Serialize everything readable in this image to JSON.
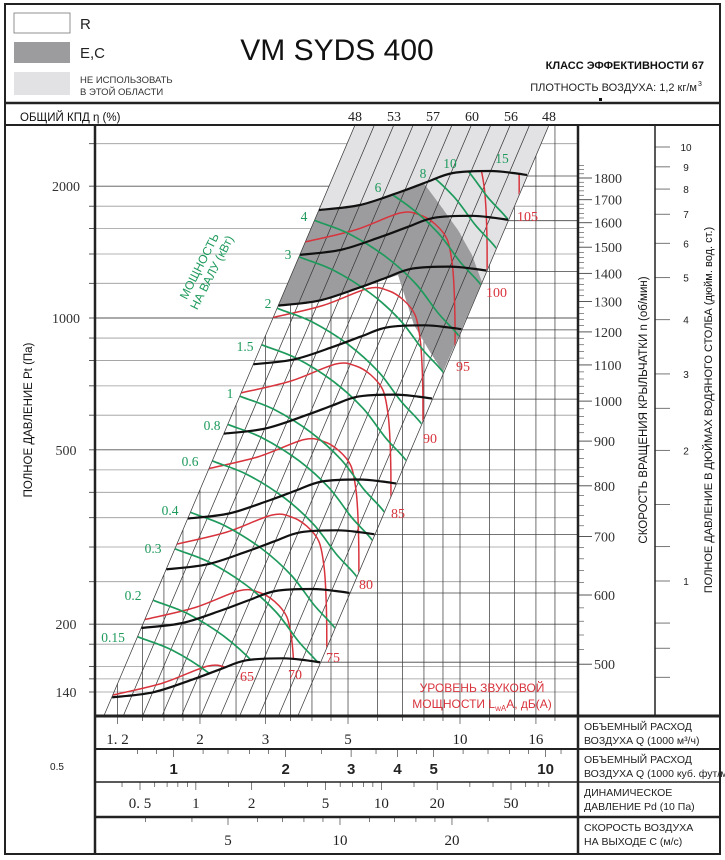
{
  "header": {
    "title": "VM SYDS 400",
    "legend": [
      {
        "label": "R",
        "color": "#ffffff"
      },
      {
        "label": "E,C",
        "color": "#9c9c9e"
      },
      {
        "label": "НЕ ИСПОЛЬЗОВАТЬ",
        "label2": "В ЭТОЙ ОБЛАСТИ",
        "color": "#e2e2e4"
      }
    ],
    "efficiency_class": "КЛАСС ЭФФЕКТИВНОСТИ 67",
    "air_density": "ПЛОТНОСТЬ ВОЗДУХА: 1,2 кг/м",
    "air_density_sup": "3"
  },
  "left_note": "0.5",
  "chart_data": {
    "type": "line",
    "title": "VM SYDS 400",
    "efficiency": {
      "label": "ОБЩИЙ КПД η (%)",
      "values": [
        48,
        53,
        57,
        60,
        56,
        48
      ]
    },
    "y_axis": {
      "label": "ПОЛНОЕ ДАВЛЕНИЕ Pt (Па)",
      "scale": "log",
      "range": [
        130,
        2700
      ],
      "ticks": [
        140,
        200,
        500,
        1000,
        2000
      ],
      "minor_ticks": [
        140,
        150,
        160,
        180,
        200,
        250,
        300,
        350,
        400,
        450,
        500,
        600,
        700,
        800,
        900,
        1000,
        1200,
        1400,
        1600,
        1800,
        2000,
        2500
      ]
    },
    "rpm_axis": {
      "label": "СКОРОСТЬ ВРАЩЕНИЯ КРЫЛЬЧАТКИ  n (об/мин)",
      "ticks": [
        500,
        600,
        700,
        800,
        900,
        1000,
        1100,
        1200,
        1300,
        1400,
        1500,
        1600,
        1700,
        1800
      ]
    },
    "inch_axis": {
      "label": "ПОЛНОЕ ДАВЛЕНИЕ В ДЮЙМАХ ВОДЯНОГО СТОЛБА (дюйм. вод. ст.)",
      "ticks": [
        1,
        2,
        3,
        4,
        5,
        6,
        7,
        8,
        9,
        10
      ],
      "minor_ticks": [
        0.6,
        0.7,
        0.8,
        1.2,
        1.5,
        2.5
      ]
    },
    "x_axes": [
      {
        "label": "ОБЪЕМНЫЙ РАСХОД",
        "label2": "ВОЗДУХА Q (1000 м³/ч)",
        "ticks": [
          {
            "v": 1.2,
            "t": "1. 2"
          },
          {
            "v": 2,
            "t": "2"
          },
          {
            "v": 3,
            "t": "3"
          },
          {
            "v": 5,
            "t": "5"
          },
          {
            "v": 10,
            "t": "10"
          },
          {
            "v": 16,
            "t": "16"
          }
        ],
        "minor_ticks": [
          1.2,
          1.4,
          1.6,
          1.8,
          2,
          2.5,
          3,
          3.5,
          4,
          4.5,
          5,
          6,
          7,
          8,
          9,
          10,
          12,
          14,
          16,
          18
        ]
      },
      {
        "label": "ОБЪЕМНЫЙ РАСХОД",
        "label2": "ВОЗДУХА Q (1000 куб. фут/мин)",
        "ticks": [
          {
            "v": 1,
            "t": "1"
          },
          {
            "v": 2,
            "t": "2"
          },
          {
            "v": 3,
            "t": "3"
          },
          {
            "v": 4,
            "t": "4"
          },
          {
            "v": 5,
            "t": "5"
          },
          {
            "v": 10,
            "t": "10"
          }
        ],
        "minor_ticks": [
          0.8,
          0.9,
          1,
          1.2,
          1.4,
          1.6,
          1.8,
          2,
          2.5,
          3,
          3.5,
          4,
          4.5,
          5,
          6,
          7,
          8,
          9,
          10,
          11
        ]
      },
      {
        "label": "ДИНАМИЧЕСКОЕ",
        "label2": "ДАВЛЕНИЕ Pd (10 Па)",
        "ticks": [
          {
            "v": 0.5,
            "t": "0. 5"
          },
          {
            "v": 1,
            "t": "1"
          },
          {
            "v": 2,
            "t": "2"
          },
          {
            "v": 5,
            "t": "5"
          },
          {
            "v": 10,
            "t": "10"
          },
          {
            "v": 20,
            "t": "20"
          },
          {
            "v": 50,
            "t": "50"
          }
        ],
        "minor_ticks": [
          0.4,
          0.5,
          0.6,
          0.7,
          0.8,
          0.9,
          1,
          1.5,
          2,
          3,
          4,
          5,
          6,
          7,
          8,
          9,
          10,
          15,
          20,
          30,
          40,
          50,
          60,
          70,
          80
        ]
      },
      {
        "label": "СКОРОСТЬ ВОЗДУХА",
        "label2": "НА ВЫХОДЕ С (м/с)",
        "ticks": [
          {
            "v": 5,
            "t": "5"
          },
          {
            "v": 10,
            "t": "10"
          },
          {
            "v": 20,
            "t": "20"
          }
        ],
        "minor_ticks": [
          3,
          4,
          5,
          6,
          7,
          8,
          9,
          10,
          12,
          14,
          16,
          18,
          20,
          25
        ]
      }
    ],
    "speed_curves_rpm": [
      500,
      600,
      700,
      800,
      1000,
      1200,
      1400,
      1600,
      1800
    ],
    "power_curves_kw": [
      {
        "v": 0.15,
        "t": "0.15"
      },
      {
        "v": 0.2,
        "t": "0.2"
      },
      {
        "v": 0.3,
        "t": "0.3"
      },
      {
        "v": 0.4,
        "t": "0.4"
      },
      {
        "v": 0.6,
        "t": "0.6"
      },
      {
        "v": 0.8,
        "t": "0.8"
      },
      {
        "v": 1,
        "t": "1"
      },
      {
        "v": 1.5,
        "t": "1.5"
      },
      {
        "v": 2,
        "t": "2"
      },
      {
        "v": 3,
        "t": "3"
      },
      {
        "v": 4,
        "t": "4"
      },
      {
        "v": 6,
        "t": "6"
      },
      {
        "v": 8,
        "t": "8"
      },
      {
        "v": 10,
        "t": "10"
      },
      {
        "v": 15,
        "t": "15"
      }
    ],
    "sound_curves_dba": [
      65,
      70,
      75,
      80,
      85,
      90,
      95,
      100,
      105
    ],
    "power_title": [
      "МОЩНОСТЬ",
      "НА ВАЛУ (кВт)"
    ],
    "sound_title": {
      "line1": "УРОВЕНЬ ЗВУКОВОЙ",
      "line2": "МОЩНОСТИ L",
      "sub": "wA",
      "line2_end": "A, дБ(A)"
    },
    "colors": {
      "speed": "#111111",
      "power": "#1e9a5c",
      "sound": "#d8343d",
      "ec_zone": "#9c9c9e",
      "no_use_zone": "#e2e2e4"
    }
  }
}
